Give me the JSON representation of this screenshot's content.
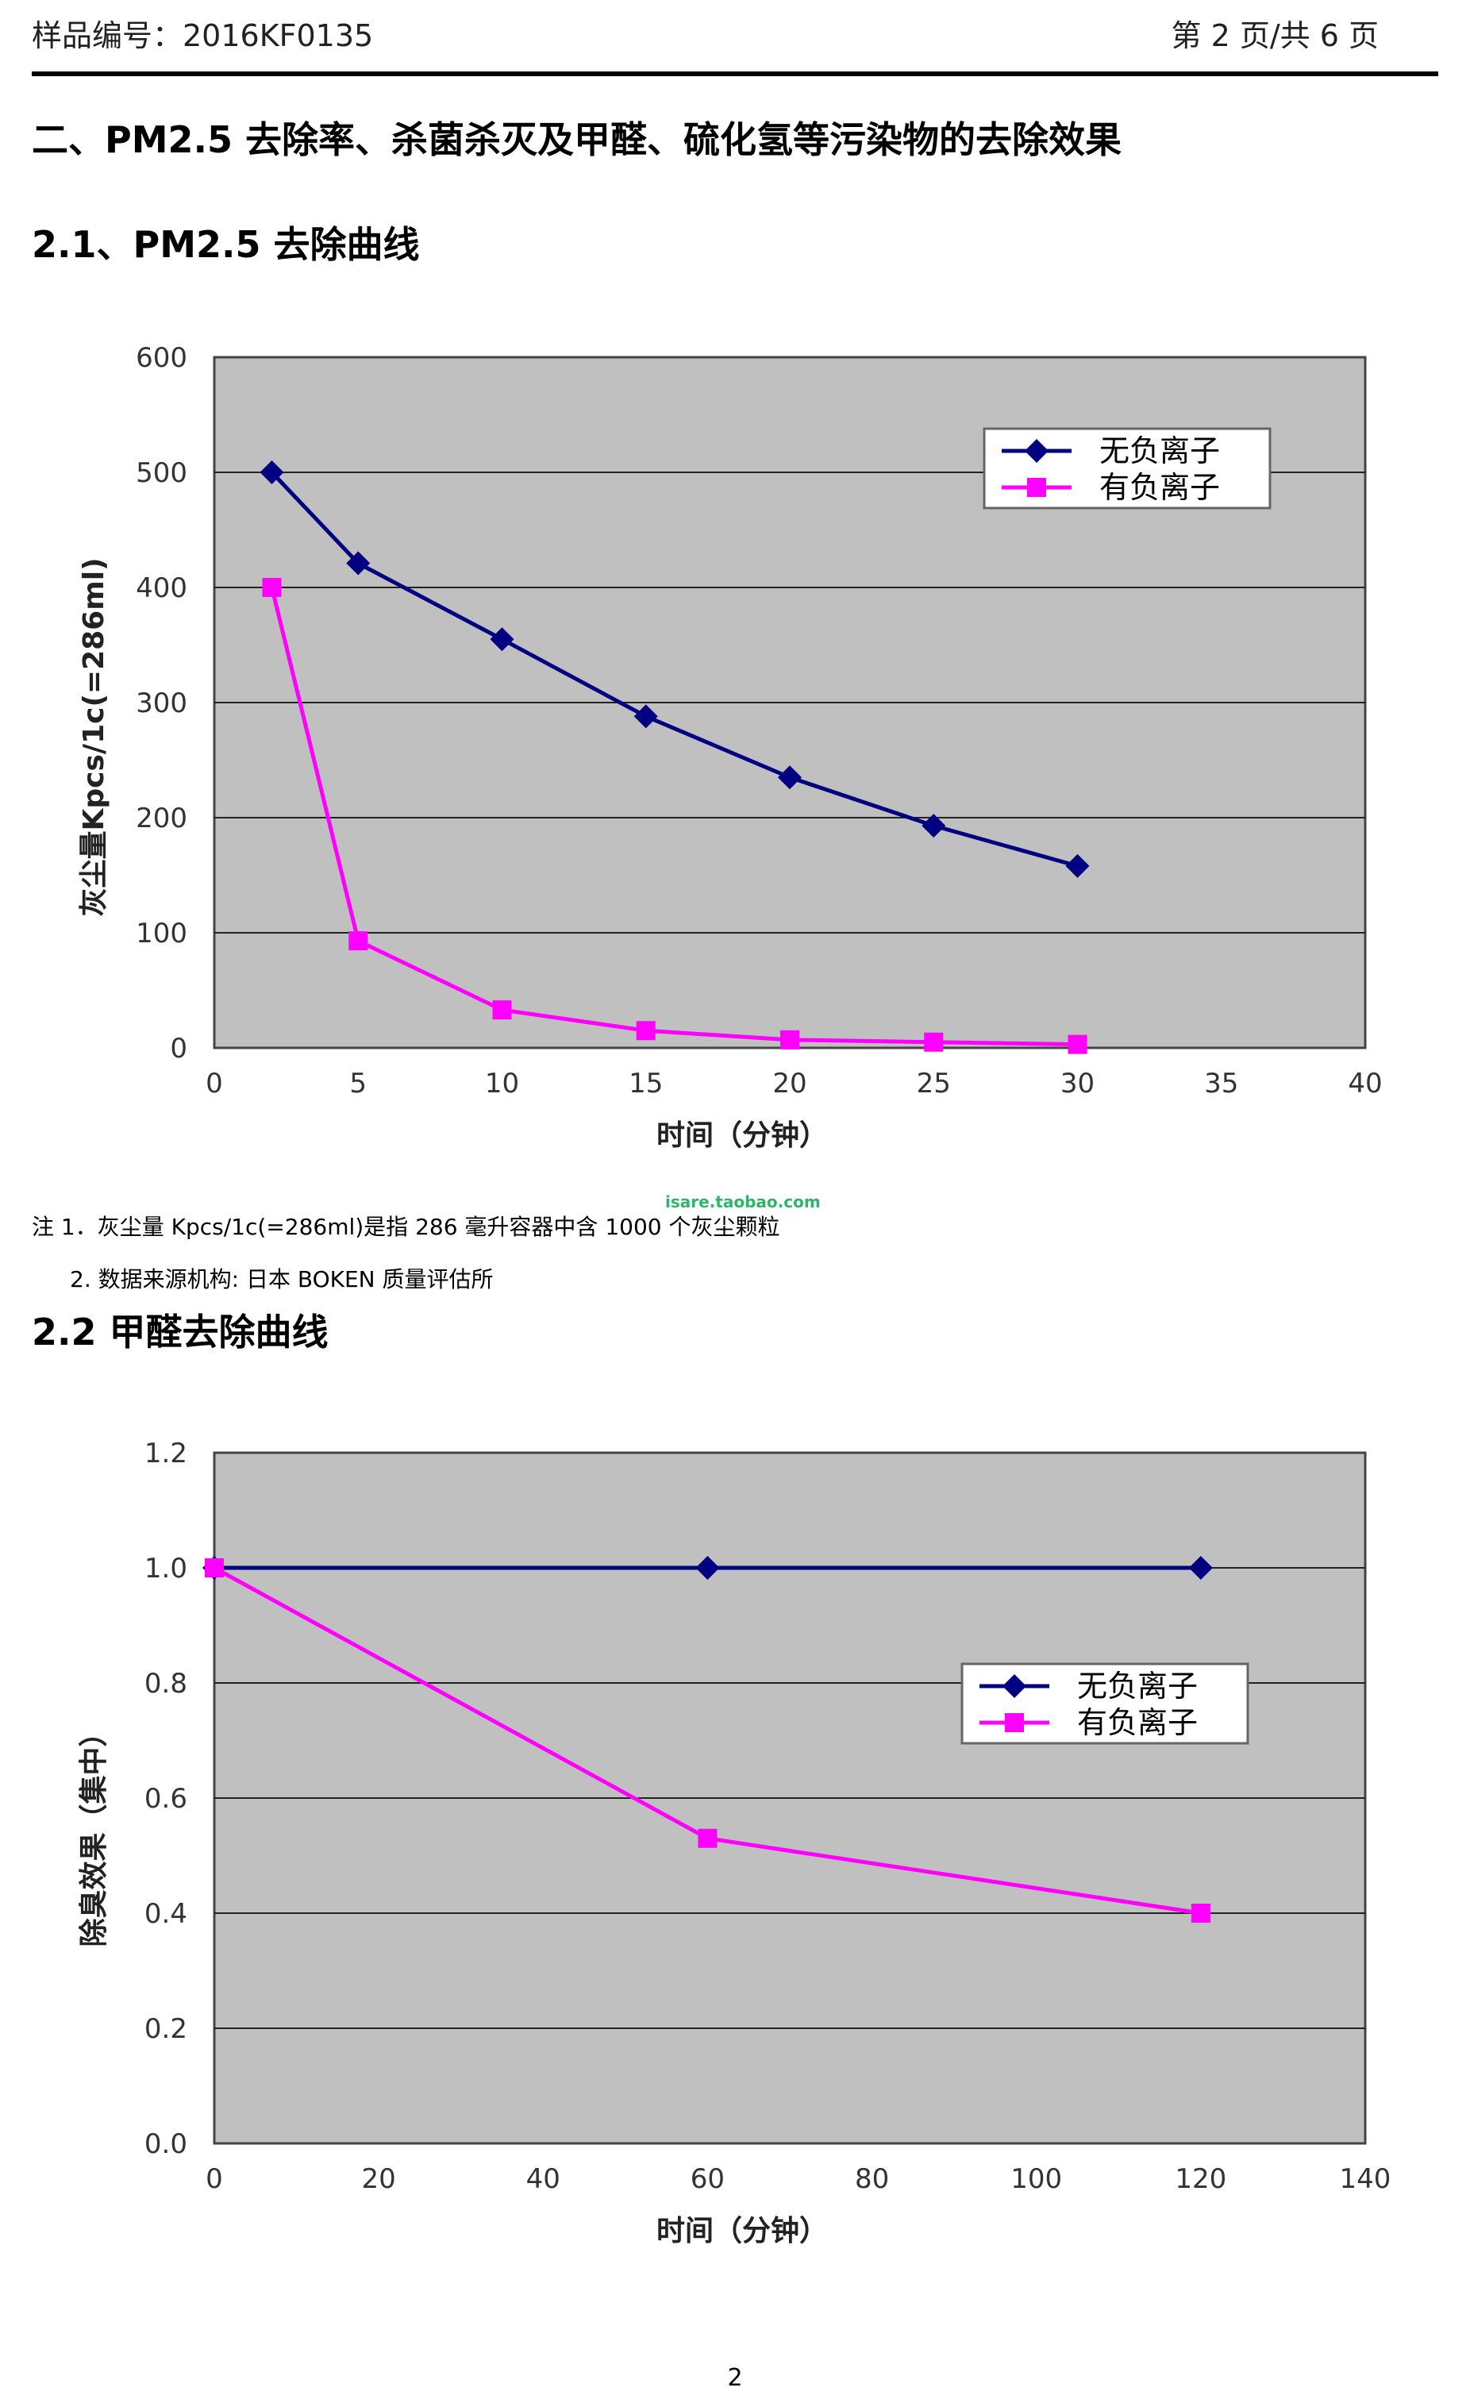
{
  "header": {
    "sample_no": "样品编号：2016KF0135",
    "page_info": "第 2 页/共 6 页"
  },
  "section_title": "二、PM2.5 去除率、杀菌杀灭及甲醛、硫化氢等污染物的去除效果",
  "sub1_title": "2.1、PM2.5 去除曲线",
  "sub2_title": "2.2 甲醛去除曲线",
  "notes": {
    "note1": "注 1．灰尘量 Kpcs/1c(=286ml)是指 286 毫升容器中含 1000 个灰尘颗粒",
    "note2": "2.   数据来源机构:  日本 BOKEN 质量评估所",
    "watermark": "isare.taobao.com"
  },
  "page_number": "2",
  "colors": {
    "series1": "#000080",
    "series2": "#ff00ff",
    "plot_bg": "#c0c0c0"
  },
  "chart_data": [
    {
      "type": "line",
      "ylabel": "灰尘量Kpcs/1c(=286ml)",
      "xlabel": "时间（分钟）",
      "xlim": [
        0,
        40
      ],
      "ylim": [
        0,
        600
      ],
      "x_ticks": [
        "0",
        "5",
        "10",
        "15",
        "20",
        "25",
        "30",
        "35",
        "40"
      ],
      "y_ticks": [
        "0",
        "100",
        "200",
        "300",
        "400",
        "500",
        "600"
      ],
      "legend_position": "top-right",
      "series": [
        {
          "name": "无负离子",
          "marker": "diamond",
          "color": "#000080",
          "x": [
            2,
            5,
            10,
            15,
            20,
            25,
            30
          ],
          "y": [
            500,
            421,
            355,
            288,
            235,
            193,
            158
          ]
        },
        {
          "name": "有负离子",
          "marker": "square",
          "color": "#ff00ff",
          "x": [
            2,
            5,
            10,
            15,
            20,
            25,
            30
          ],
          "y": [
            400,
            93,
            33,
            15,
            7,
            5,
            3
          ]
        }
      ]
    },
    {
      "type": "line",
      "ylabel": "除臭效果（集中）",
      "xlabel": "时间（分钟）",
      "xlim": [
        0,
        140
      ],
      "ylim": [
        0,
        1.2
      ],
      "x_ticks": [
        "0",
        "20",
        "40",
        "60",
        "80",
        "100",
        "120",
        "140"
      ],
      "y_ticks": [
        "0.0",
        "0.2",
        "0.4",
        "0.6",
        "0.8",
        "1.0",
        "1.2"
      ],
      "legend_position": "center-right",
      "series": [
        {
          "name": "无负离子",
          "marker": "diamond",
          "color": "#000080",
          "x": [
            0,
            60,
            120
          ],
          "y": [
            1.0,
            1.0,
            1.0
          ]
        },
        {
          "name": "有负离子",
          "marker": "square",
          "color": "#ff00ff",
          "x": [
            0,
            60,
            120
          ],
          "y": [
            1.0,
            0.53,
            0.4
          ]
        }
      ]
    }
  ]
}
